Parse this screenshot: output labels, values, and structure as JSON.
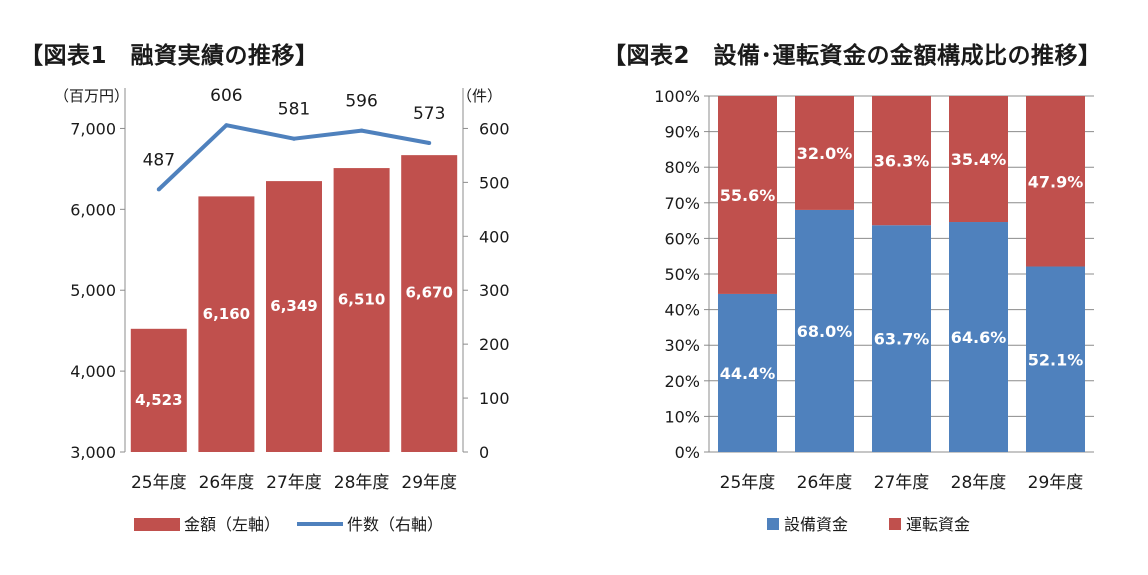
{
  "chart_data": [
    {
      "type": "bar+line",
      "title": "【図表1　融資実績の推移】",
      "left_axis_unit": "（百万円）",
      "right_axis_unit": "（件）",
      "categories": [
        "25年度",
        "26年度",
        "27年度",
        "28年度",
        "29年度"
      ],
      "left_ticks": [
        "3,000",
        "4,000",
        "5,000",
        "6,000",
        "7,000"
      ],
      "right_ticks": [
        "0",
        "100",
        "200",
        "300",
        "400",
        "500",
        "600"
      ],
      "ylim_left": [
        3000,
        7500
      ],
      "ylim_right": [
        0,
        675
      ],
      "series": [
        {
          "name": "金額（左軸）",
          "kind": "bar",
          "axis": "left",
          "color": "#C0504D",
          "values": [
            4523,
            6160,
            6349,
            6510,
            6670
          ],
          "labels": [
            "4,523",
            "6,160",
            "6,349",
            "6,510",
            "6,670"
          ]
        },
        {
          "name": "件数（右軸）",
          "kind": "line",
          "axis": "right",
          "color": "#4F81BD",
          "values": [
            487,
            606,
            581,
            596,
            573
          ],
          "labels": [
            "487",
            "606",
            "581",
            "596",
            "573"
          ]
        }
      ],
      "grid": false,
      "legend_position": "bottom"
    },
    {
      "type": "bar",
      "stacked": true,
      "percent": true,
      "title": "【図表2　設備･運転資金の金額構成比の推移】",
      "categories": [
        "25年度",
        "26年度",
        "27年度",
        "28年度",
        "29年度"
      ],
      "ticks": [
        "0%",
        "10%",
        "20%",
        "30%",
        "40%",
        "50%",
        "60%",
        "70%",
        "80%",
        "90%",
        "100%"
      ],
      "ylim": [
        0,
        100
      ],
      "series": [
        {
          "name": "設備資金",
          "color": "#4F81BD",
          "values": [
            44.4,
            68.0,
            63.7,
            64.6,
            52.1
          ],
          "labels": [
            "44.4%",
            "68.0%",
            "63.7%",
            "64.6%",
            "52.1%"
          ]
        },
        {
          "name": "運転資金",
          "color": "#C0504D",
          "values": [
            55.6,
            32.0,
            36.3,
            35.4,
            47.9
          ],
          "labels": [
            "55.6%",
            "32.0%",
            "36.3%",
            "35.4%",
            "47.9%"
          ]
        }
      ],
      "grid": true,
      "legend_position": "bottom"
    }
  ]
}
